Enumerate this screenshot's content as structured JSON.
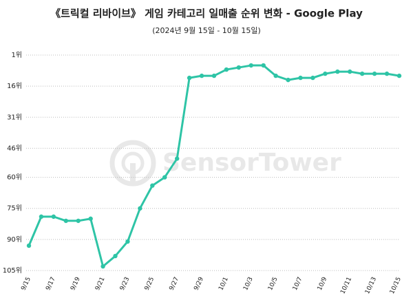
{
  "chart_data": {
    "type": "line",
    "title": "《트릭컬 리바이브》 게임 카테고리 일매출 순위 변화 - Google Play",
    "subtitle": "(2024년 9월 15일 - 10월 15일)",
    "watermark": "SensorTower",
    "categories": [
      "9/15",
      null,
      "9/17",
      null,
      "9/19",
      null,
      "9/21",
      null,
      "9/23",
      null,
      "9/25",
      null,
      "9/27",
      null,
      "9/29",
      null,
      "10/1",
      null,
      "10/3",
      null,
      "10/5",
      null,
      "10/7",
      null,
      "10/9",
      null,
      "10/11",
      null,
      "10/13",
      null,
      "10/15"
    ],
    "values": [
      93,
      79,
      79,
      81,
      81,
      80,
      103,
      98,
      91,
      75,
      64,
      60,
      51,
      12,
      11,
      11,
      8,
      7,
      6,
      6,
      11,
      13,
      12,
      12,
      10,
      9,
      9,
      10,
      10,
      10,
      11
    ],
    "color": "#2ec4a6",
    "ylim": [
      105,
      1
    ],
    "yticks": [
      {
        "value": 1,
        "label": "1위"
      },
      {
        "value": 16,
        "label": "16위"
      },
      {
        "value": 31,
        "label": "31위"
      },
      {
        "value": 46,
        "label": "46위"
      },
      {
        "value": 60,
        "label": "60위"
      },
      {
        "value": 75,
        "label": "75위"
      },
      {
        "value": 90,
        "label": "90위"
      },
      {
        "value": 105,
        "label": "105위"
      }
    ],
    "grid": true
  }
}
